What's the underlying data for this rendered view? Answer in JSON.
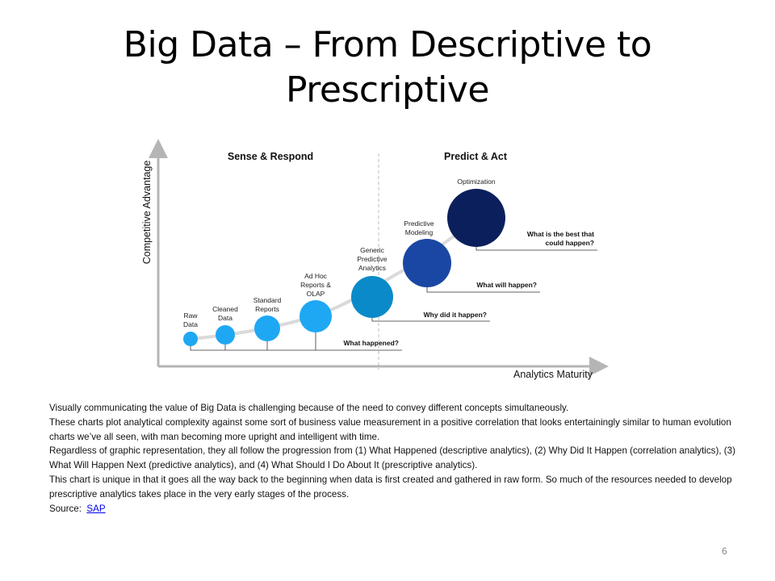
{
  "slide": {
    "title": "Big Data – From Descriptive to Prescriptive",
    "page_number": "6"
  },
  "diagram": {
    "section_left": "Sense & Respond",
    "section_right": "Predict & Act",
    "y_axis_label": "Competitive Advantage",
    "x_axis_label": "Analytics Maturity",
    "stages": [
      {
        "lines": [
          "Raw",
          "Data"
        ],
        "color": "#1ea8f4"
      },
      {
        "lines": [
          "Cleaned",
          "Data"
        ],
        "color": "#1ea8f4"
      },
      {
        "lines": [
          "Standard",
          "Reports"
        ],
        "color": "#1ea8f4"
      },
      {
        "lines": [
          "Ad Hoc",
          "Reports &",
          "OLAP"
        ],
        "color": "#1ea8f4"
      },
      {
        "lines": [
          "Generic",
          "Predictive",
          "Analytics"
        ],
        "color": "#0b8ac9"
      },
      {
        "lines": [
          "Predictive",
          "Modeling"
        ],
        "color": "#1a47a3"
      },
      {
        "lines": [
          "Optimization"
        ],
        "color": "#0b1f5c"
      }
    ],
    "questions": [
      {
        "lines": [
          "What happened?"
        ]
      },
      {
        "lines": [
          "Why did it happen?"
        ]
      },
      {
        "lines": [
          "What will happen?"
        ]
      },
      {
        "lines": [
          "What is the best that",
          "could happen?"
        ]
      }
    ]
  },
  "body": {
    "paragraphs": [
      "Visually communicating the value of Big Data is challenging because of the need to convey different concepts simultaneously.",
      "These charts plot analytical complexity against some sort of business value measurement in a positive correlation that looks entertainingly similar to human evolution charts we’ve all seen, with man becoming more upright and intelligent with time.",
      "Regardless of graphic representation, they all follow the progression from (1) What Happened (descriptive analytics), (2) Why Did It Happen (correlation analytics), (3) What Will Happen Next (predictive analytics), and (4) What Should I Do About It (prescriptive analytics).",
      "This chart is unique in that it goes all the way back to the beginning when data is first created and gathered in raw form.  So much of the resources needed to develop prescriptive analytics takes place in the very early stages of the process."
    ],
    "source_label": "Source:",
    "source_link": "SAP"
  }
}
